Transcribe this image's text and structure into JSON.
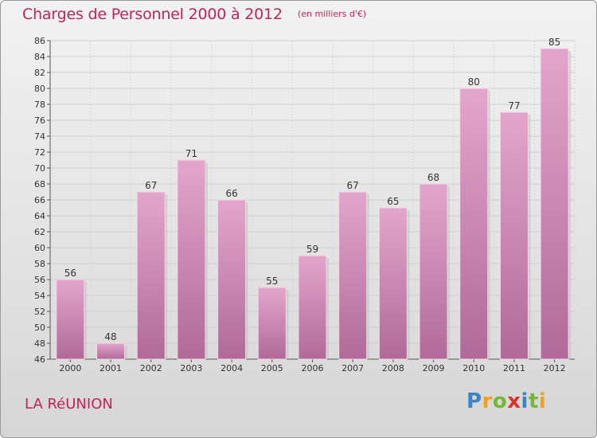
{
  "header": {
    "title": "Charges de Personnel 2000 à 2012",
    "subtitle": "(en milliers d'€)"
  },
  "footer": {
    "region": "LA RéUNION",
    "logo_text": "Proxiti"
  },
  "colors": {
    "title": "#c0245c",
    "bar_top": "#e3a6cb",
    "bar_bottom": "#b06a99"
  },
  "chart_data": {
    "type": "bar",
    "title": "Charges de Personnel 2000 à 2012",
    "subtitle": "(en milliers d'€)",
    "xlabel": "",
    "ylabel": "",
    "categories": [
      "2000",
      "2001",
      "2002",
      "2003",
      "2004",
      "2005",
      "2006",
      "2007",
      "2008",
      "2009",
      "2010",
      "2011",
      "2012"
    ],
    "values": [
      56,
      48,
      67,
      71,
      66,
      55,
      59,
      67,
      65,
      68,
      80,
      77,
      85
    ],
    "ylim": [
      46,
      86
    ],
    "yticks": [
      46,
      48,
      50,
      52,
      54,
      56,
      58,
      60,
      62,
      64,
      66,
      68,
      70,
      72,
      74,
      76,
      78,
      80,
      82,
      84,
      86
    ],
    "grid": true,
    "legend": "none"
  }
}
